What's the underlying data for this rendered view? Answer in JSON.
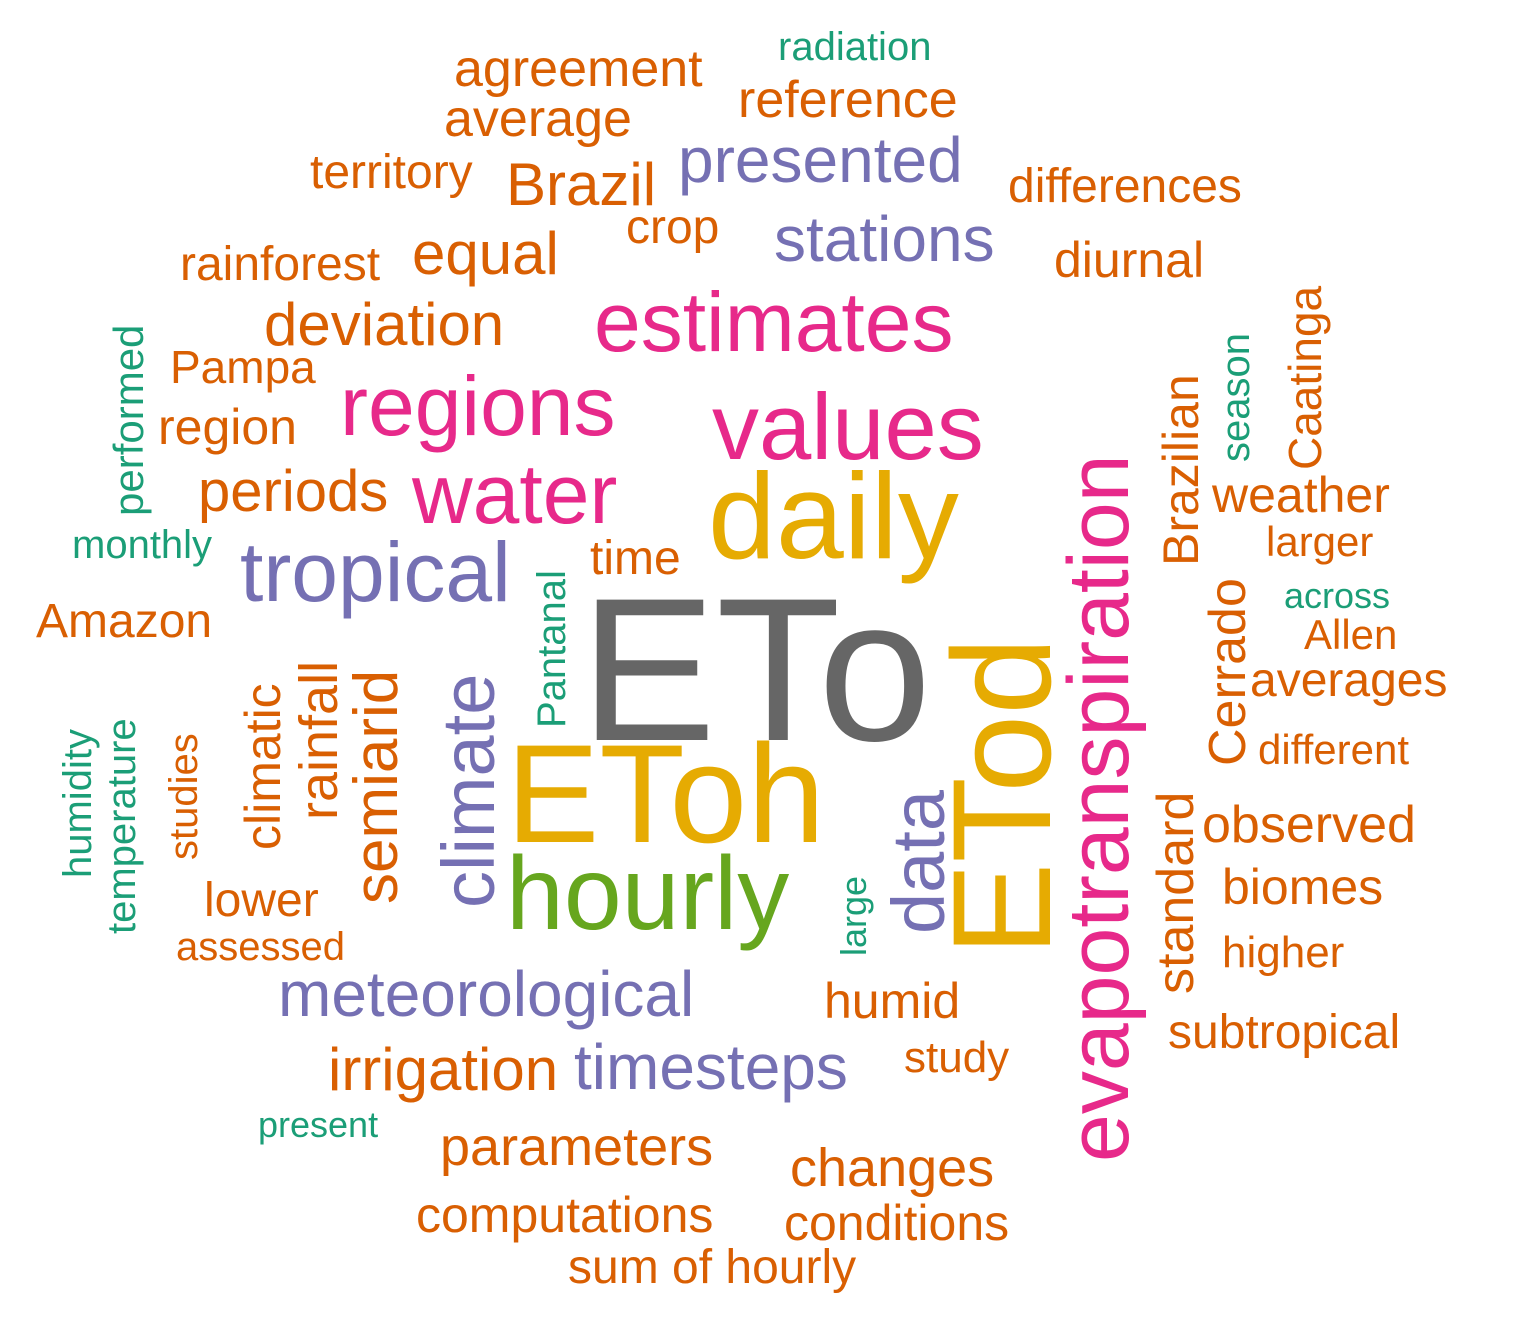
{
  "colors": {
    "gray": "#666666",
    "gold": "#E6AB02",
    "green": "#66A61E",
    "magenta": "#E7298A",
    "purple": "#7570B3",
    "orange": "#D95F02",
    "teal": "#1B9E77"
  },
  "words": [
    {
      "id": "w1",
      "text": "ETo",
      "color": "gray"
    },
    {
      "id": "w2",
      "text": "ETod",
      "color": "gold"
    },
    {
      "id": "w3",
      "text": "EToh",
      "color": "gold"
    },
    {
      "id": "w4",
      "text": "daily",
      "color": "gold"
    },
    {
      "id": "w5",
      "text": "hourly",
      "color": "green"
    },
    {
      "id": "w6",
      "text": "evapotranspiration",
      "color": "magenta"
    },
    {
      "id": "w7",
      "text": "values",
      "color": "magenta"
    },
    {
      "id": "w8",
      "text": "estimates",
      "color": "magenta"
    },
    {
      "id": "w9",
      "text": "regions",
      "color": "magenta"
    },
    {
      "id": "w10",
      "text": "water",
      "color": "magenta"
    },
    {
      "id": "w11",
      "text": "tropical",
      "color": "purple"
    },
    {
      "id": "w12",
      "text": "climate",
      "color": "purple"
    },
    {
      "id": "w13",
      "text": "data",
      "color": "purple"
    },
    {
      "id": "w14",
      "text": "presented",
      "color": "purple"
    },
    {
      "id": "w15",
      "text": "stations",
      "color": "purple"
    },
    {
      "id": "w16",
      "text": "meteorological",
      "color": "purple"
    },
    {
      "id": "w17",
      "text": "timesteps",
      "color": "purple"
    },
    {
      "id": "w18",
      "text": "radiation",
      "color": "teal"
    },
    {
      "id": "w19",
      "text": "agreement",
      "color": "orange"
    },
    {
      "id": "w20",
      "text": "reference",
      "color": "orange"
    },
    {
      "id": "w21",
      "text": "average",
      "color": "orange"
    },
    {
      "id": "w22",
      "text": "territory",
      "color": "orange"
    },
    {
      "id": "w23",
      "text": "Brazil",
      "color": "orange"
    },
    {
      "id": "w24",
      "text": "differences",
      "color": "orange"
    },
    {
      "id": "w25",
      "text": "crop",
      "color": "orange"
    },
    {
      "id": "w26",
      "text": "rainforest",
      "color": "orange"
    },
    {
      "id": "w27",
      "text": "equal",
      "color": "orange"
    },
    {
      "id": "w28",
      "text": "diurnal",
      "color": "orange"
    },
    {
      "id": "w29",
      "text": "deviation",
      "color": "orange"
    },
    {
      "id": "w30",
      "text": "performed",
      "color": "teal"
    },
    {
      "id": "w31",
      "text": "Pampa",
      "color": "orange"
    },
    {
      "id": "w32",
      "text": "region",
      "color": "orange"
    },
    {
      "id": "w33",
      "text": "periods",
      "color": "orange"
    },
    {
      "id": "w34",
      "text": "monthly",
      "color": "teal"
    },
    {
      "id": "w35",
      "text": "Amazon",
      "color": "orange"
    },
    {
      "id": "w36",
      "text": "time",
      "color": "orange"
    },
    {
      "id": "w37",
      "text": "Pantanal",
      "color": "teal"
    },
    {
      "id": "w38",
      "text": "Brazilian",
      "color": "orange"
    },
    {
      "id": "w39",
      "text": "season",
      "color": "teal"
    },
    {
      "id": "w40",
      "text": "Caatinga",
      "color": "orange"
    },
    {
      "id": "w41",
      "text": "weather",
      "color": "orange"
    },
    {
      "id": "w42",
      "text": "larger",
      "color": "orange"
    },
    {
      "id": "w43",
      "text": "across",
      "color": "teal"
    },
    {
      "id": "w44",
      "text": "Allen",
      "color": "orange"
    },
    {
      "id": "w45",
      "text": "averages",
      "color": "orange"
    },
    {
      "id": "w46",
      "text": "Cerrado",
      "color": "orange"
    },
    {
      "id": "w47",
      "text": "different",
      "color": "orange"
    },
    {
      "id": "w48",
      "text": "observed",
      "color": "orange"
    },
    {
      "id": "w49",
      "text": "biomes",
      "color": "orange"
    },
    {
      "id": "w50",
      "text": "higher",
      "color": "orange"
    },
    {
      "id": "w51",
      "text": "subtropical",
      "color": "orange"
    },
    {
      "id": "w52",
      "text": "standard",
      "color": "orange"
    },
    {
      "id": "w53",
      "text": "humidity",
      "color": "teal"
    },
    {
      "id": "w54",
      "text": "temperature",
      "color": "teal"
    },
    {
      "id": "w55",
      "text": "studies",
      "color": "orange"
    },
    {
      "id": "w56",
      "text": "climatic",
      "color": "orange"
    },
    {
      "id": "w57",
      "text": "rainfall",
      "color": "orange"
    },
    {
      "id": "w58",
      "text": "semiarid",
      "color": "orange"
    },
    {
      "id": "w59",
      "text": "lower",
      "color": "orange"
    },
    {
      "id": "w60",
      "text": "assessed",
      "color": "orange"
    },
    {
      "id": "w61",
      "text": "large",
      "color": "teal"
    },
    {
      "id": "w62",
      "text": "humid",
      "color": "orange"
    },
    {
      "id": "w63",
      "text": "irrigation",
      "color": "orange"
    },
    {
      "id": "w64",
      "text": "study",
      "color": "orange"
    },
    {
      "id": "w65",
      "text": "present",
      "color": "teal"
    },
    {
      "id": "w66",
      "text": "parameters",
      "color": "orange"
    },
    {
      "id": "w67",
      "text": "changes",
      "color": "orange"
    },
    {
      "id": "w68",
      "text": "computations",
      "color": "orange"
    },
    {
      "id": "w69",
      "text": "conditions",
      "color": "orange"
    },
    {
      "id": "w70",
      "text": "sum of hourly",
      "color": "orange"
    }
  ]
}
